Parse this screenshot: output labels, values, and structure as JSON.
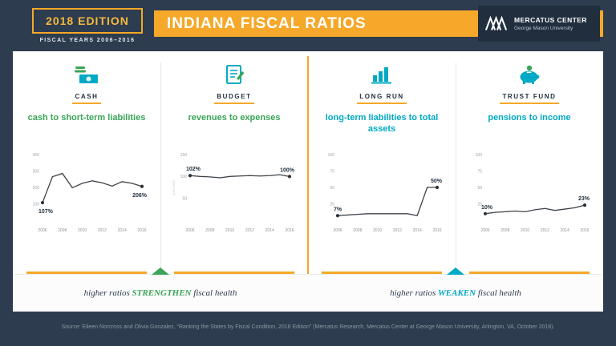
{
  "header": {
    "edition": "2018 EDITION",
    "fiscal_years": "FISCAL YEARS 2006–2016",
    "title": "INDIANA FISCAL RATIOS",
    "logo": {
      "name": "MERCATUS CENTER",
      "subtitle": "George Mason University"
    }
  },
  "colors": {
    "gold": "#f5a829",
    "green": "#3aa558",
    "teal": "#00a9c5",
    "navy": "#2d3c4e"
  },
  "panels": [
    {
      "category": "CASH",
      "title": "cash to short-term liabilities",
      "accent": "green"
    },
    {
      "category": "BUDGET",
      "title": "revenues to expenses",
      "accent": "green"
    },
    {
      "category": "LONG RUN",
      "title": "long-term liabilities to total assets",
      "accent": "teal"
    },
    {
      "category": "TRUST FUND",
      "title": "pensions to income",
      "accent": "teal"
    }
  ],
  "chart_data": [
    {
      "type": "line",
      "title": "cash to short-term liabilities",
      "x": [
        2006,
        2007,
        2008,
        2009,
        2010,
        2011,
        2012,
        2013,
        2014,
        2015,
        2016
      ],
      "values": [
        107,
        265,
        285,
        198,
        225,
        240,
        228,
        208,
        235,
        225,
        206
      ],
      "ylim": [
        0,
        400
      ],
      "yticks": [
        100,
        200,
        300,
        400
      ],
      "xticks": [
        2006,
        2008,
        2010,
        2012,
        2014,
        2016
      ],
      "first_label": "107%",
      "first_label_pos": "below",
      "last_label": "206%",
      "last_label_pos": "below",
      "ylabel": ""
    },
    {
      "type": "line",
      "title": "revenues to expenses",
      "x": [
        2006,
        2007,
        2008,
        2009,
        2010,
        2011,
        2012,
        2013,
        2014,
        2015,
        2016
      ],
      "values": [
        102,
        100,
        99,
        97,
        100,
        101,
        102,
        101,
        102,
        104,
        100
      ],
      "ylim": [
        0,
        150
      ],
      "yticks": [
        50,
        100,
        150
      ],
      "xticks": [
        2006,
        2008,
        2010,
        2012,
        2014,
        2016
      ],
      "first_label": "102%",
      "first_label_pos": "above",
      "last_label": "100%",
      "last_label_pos": "above",
      "ylabel": "percent"
    },
    {
      "type": "line",
      "title": "long-term liabilities to total assets",
      "x": [
        2006,
        2007,
        2008,
        2009,
        2010,
        2011,
        2012,
        2013,
        2014,
        2015,
        2016
      ],
      "values": [
        7,
        8,
        9,
        10,
        10,
        10,
        10,
        10,
        7,
        50,
        50
      ],
      "ylim": [
        0,
        100
      ],
      "yticks": [
        25,
        50,
        75,
        100
      ],
      "xticks": [
        2006,
        2008,
        2010,
        2012,
        2014,
        2016
      ],
      "first_label": "7%",
      "first_label_pos": "above",
      "last_label": "50%",
      "last_label_pos": "above",
      "ylabel": ""
    },
    {
      "type": "line",
      "title": "pensions to income",
      "x": [
        2006,
        2007,
        2008,
        2009,
        2010,
        2011,
        2012,
        2013,
        2014,
        2015,
        2016
      ],
      "values": [
        10,
        12,
        13,
        14,
        13,
        16,
        18,
        15,
        17,
        19,
        23
      ],
      "ylim": [
        0,
        100
      ],
      "yticks": [
        25,
        50,
        75,
        100
      ],
      "xticks": [
        2006,
        2008,
        2010,
        2012,
        2014,
        2016
      ],
      "first_label": "10%",
      "first_label_pos": "above",
      "last_label": "23%",
      "last_label_pos": "above",
      "ylabel": ""
    }
  ],
  "footer": {
    "left": {
      "pre": "higher ratios ",
      "keyword": "STRENGTHEN",
      "post": " fiscal health"
    },
    "right": {
      "pre": "higher ratios ",
      "keyword": "WEAKEN",
      "post": " fiscal health"
    }
  },
  "source": "Source: Eileen Norcross and Olivia Gonzalez, “Ranking the States by Fiscal Condition, 2018 Edition” (Mercatus Research, Mercatus Center at George Mason University, Arlington, VA, October 2018)."
}
